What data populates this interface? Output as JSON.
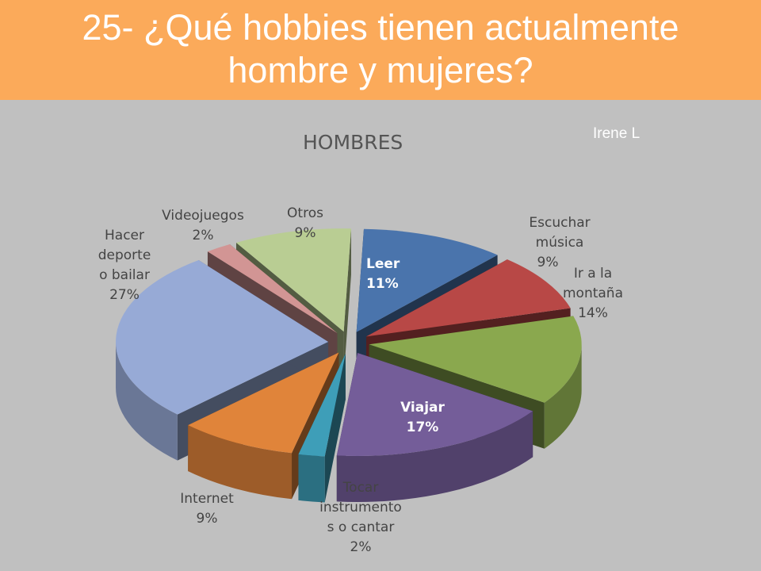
{
  "header": {
    "title_line1": "25- ¿Qué hobbies tienen actualmente",
    "title_line2": "hombre y mujeres?"
  },
  "author": "Irene L",
  "chart_data": {
    "type": "pie",
    "title": "HOMBRES",
    "style": "3d-exploded",
    "slices": [
      {
        "label": "Leer",
        "value": 11,
        "display": "11%",
        "color": "#4a74ac"
      },
      {
        "label": "Escuchar música",
        "value": 9,
        "display": "9%",
        "color": "#b84846"
      },
      {
        "label": "Ir a la montaña",
        "value": 14,
        "display": "14%",
        "color": "#8aa84e"
      },
      {
        "label": "Viajar",
        "value": 17,
        "display": "17%",
        "color": "#745d99"
      },
      {
        "label": "Tocar instrumentos o cantar",
        "value": 2,
        "display": "2%",
        "color": "#3e9eb8"
      },
      {
        "label": "Internet",
        "value": 9,
        "display": "9%",
        "color": "#e0843a"
      },
      {
        "label": "Hacer deporte o bailar",
        "value": 27,
        "display": "27%",
        "color": "#97aad6"
      },
      {
        "label": "Videojuegos",
        "value": 2,
        "display": "2%",
        "color": "#d29594"
      },
      {
        "label": "Otros",
        "value": 9,
        "display": "9%",
        "color": "#b9cd93"
      }
    ],
    "label_lines": [
      [
        "Leer",
        "11%"
      ],
      [
        "Escuchar",
        "música",
        "9%"
      ],
      [
        "Ir a la",
        "montaña",
        "14%"
      ],
      [
        "Viajar",
        "17%"
      ],
      [
        "Tocar",
        "instrumento",
        "s o cantar",
        "2%"
      ],
      [
        "Internet",
        "9%"
      ],
      [
        "Hacer",
        "deporte",
        "o bailar",
        "27%"
      ],
      [
        "Videojuegos",
        "2%"
      ],
      [
        "Otros",
        "9%"
      ]
    ]
  }
}
